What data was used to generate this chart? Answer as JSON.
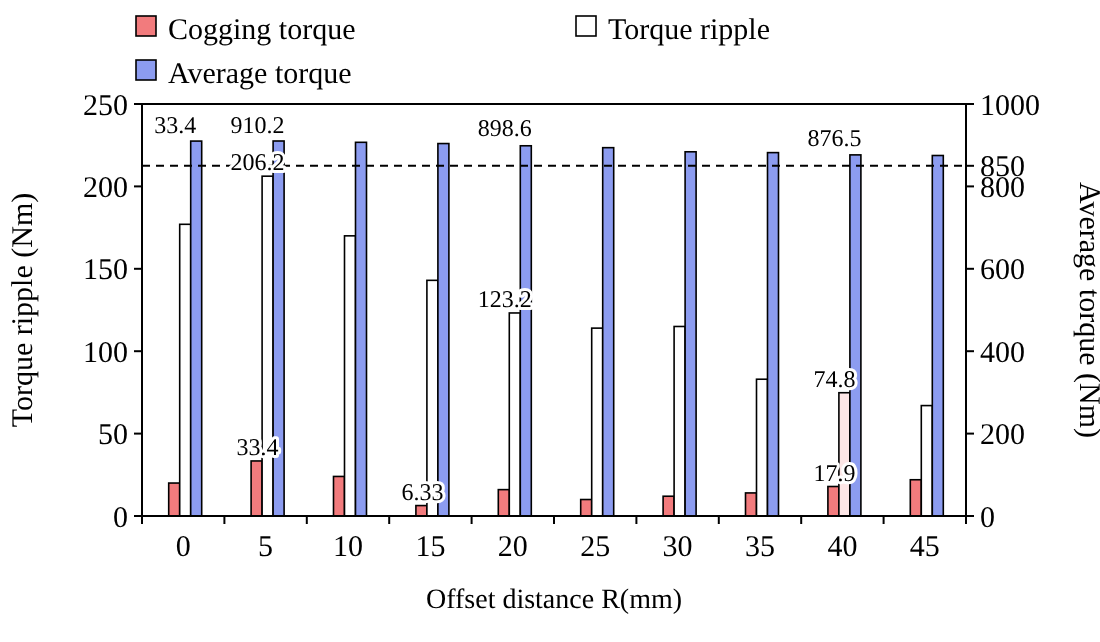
{
  "chart_data": {
    "type": "bar",
    "xlabel": "Offset distance R(mm)",
    "ylabel": "Torque ripple (Nm)",
    "y2label": "Average torque (Nm)",
    "categories": [
      "0",
      "5",
      "10",
      "15",
      "20",
      "25",
      "30",
      "35",
      "40",
      "45"
    ],
    "series": [
      {
        "name": "Cogging torque",
        "color": "#f27b7d",
        "values": [
          20,
          33.4,
          24,
          6.33,
          16,
          10,
          12,
          14,
          17.9,
          22
        ]
      },
      {
        "name": "Torque ripple",
        "color": "#ffffff",
        "colors": [
          "#ffffff",
          "#ffffff",
          "#ffffff",
          "#ffffff",
          "#ffffff",
          "#ffffff",
          "#ffffff",
          "#ffffff",
          "#fde6e6",
          "#ffffff"
        ],
        "values": [
          177,
          206.2,
          170,
          143,
          123.2,
          114,
          115,
          83,
          74.8,
          67
        ]
      },
      {
        "name": "Average torque",
        "color": "#8c9cf0",
        "axis": "y2",
        "values": [
          910,
          910.2,
          907,
          904,
          898.6,
          894,
          884,
          882,
          876.5,
          875
        ]
      }
    ],
    "ylim": [
      0,
      250
    ],
    "yticks": [
      0,
      50,
      100,
      150,
      200,
      250
    ],
    "y2lim": [
      0,
      1000
    ],
    "y2ticks": [
      0,
      200,
      400,
      600,
      800,
      850,
      1000
    ],
    "ref_lines": [
      {
        "axis": "y2",
        "value": 850,
        "line_style": "dashed",
        "color": "#000000"
      }
    ],
    "annotations": [
      {
        "text": "33.4",
        "x": "0",
        "y": 229
      },
      {
        "text": "910.2",
        "x": "5",
        "y": 229
      },
      {
        "text": "206.2",
        "x": "5",
        "y": 206.2
      },
      {
        "text": "898.6",
        "x": "20",
        "y": 227
      },
      {
        "text": "123.2",
        "x": "20",
        "y": 123.2
      },
      {
        "text": "876.5",
        "x": "40",
        "y": 221
      },
      {
        "text": "74.8",
        "x": "40",
        "y": 74.8
      },
      {
        "text": "33.4",
        "x": "5",
        "y": 33.4
      },
      {
        "text": "6.33",
        "x": "15",
        "y": 6.33
      },
      {
        "text": "17.9",
        "x": "40",
        "y": 17.9
      }
    ],
    "legend": "top left",
    "grid": false
  }
}
